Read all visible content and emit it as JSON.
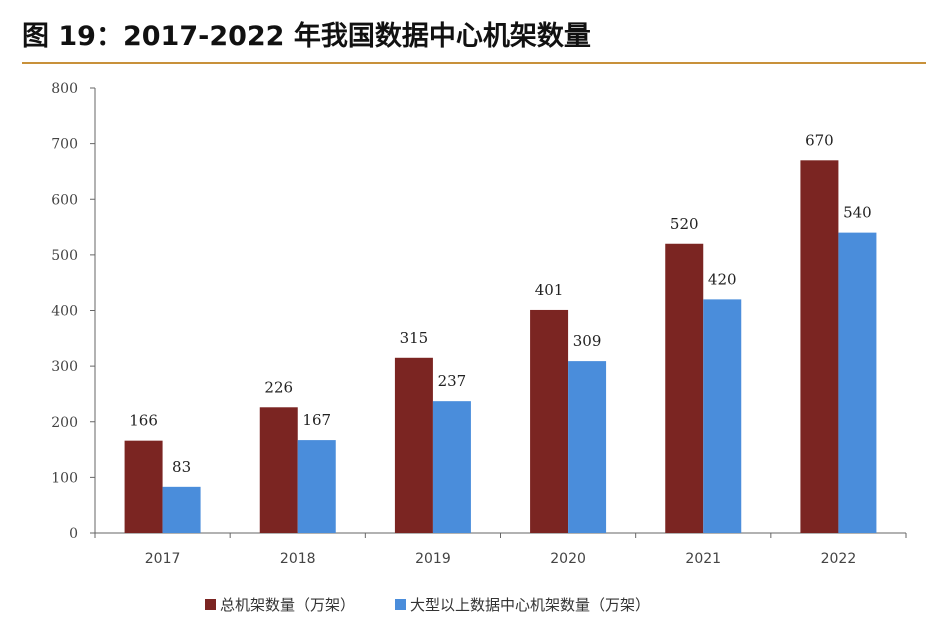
{
  "title": "图 19：2017-2022 年我国数据中心机架数量",
  "colors": {
    "rule": "#c8913a",
    "series": [
      "#7b2522",
      "#4a8ddb"
    ]
  },
  "chart_data": {
    "type": "bar",
    "categories": [
      "2017",
      "2018",
      "2019",
      "2020",
      "2021",
      "2022"
    ],
    "series": [
      {
        "name": "总机架数量（万架）",
        "values": [
          166,
          226,
          315,
          401,
          520,
          670
        ]
      },
      {
        "name": "大型以上数据中心机架数量（万架）",
        "values": [
          83,
          167,
          237,
          309,
          420,
          540
        ]
      }
    ],
    "ylim": [
      0,
      800
    ],
    "yticks": [
      "0",
      "100",
      "200",
      "300",
      "400",
      "500",
      "600",
      "700",
      "800"
    ],
    "grid": false,
    "legend": "bottom"
  }
}
